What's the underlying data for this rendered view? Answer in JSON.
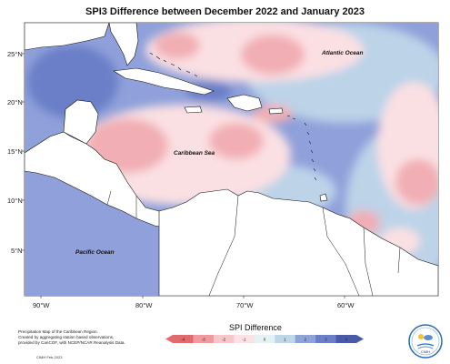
{
  "title": "SPI3 Difference between December 2022 and January 2023",
  "lat_ticks": [
    "25°N",
    "20°N",
    "15°N",
    "10°N",
    "5°N"
  ],
  "lon_ticks": [
    "90°W",
    "80°W",
    "70°W",
    "60°W"
  ],
  "labels": {
    "atlantic": "Atlantic Ocean",
    "caribbean": "Caribbean Sea",
    "pacific": "Pacific Ocean"
  },
  "legend": {
    "title": "SPI Difference",
    "ticks": [
      "-4",
      "-3",
      "-2",
      "-1",
      "0",
      "1",
      "2",
      "3",
      "4"
    ],
    "colors": [
      "#e06a6e",
      "#ee9a9e",
      "#f6c6c9",
      "#fbe2e4",
      "#e6f1f3",
      "#bfd6e9",
      "#8fa3d8",
      "#6a7fc8",
      "#4a5aa6"
    ]
  },
  "credits": {
    "line1": "Precipitation Map of the Caribbean Region.",
    "line2": "Created by aggregating station based observations,",
    "line3": "provided by CariCOF, with NCEP/NCAR Reanalysis Data.",
    "date": "CIMH Feb-2023"
  },
  "logo_text": "CIMH",
  "colors": {
    "land": "#ffffff",
    "wet_light": "#bcd3e8",
    "wet_mid": "#8fa0da",
    "dry_light": "#fbe0e3",
    "dry_mid": "#f1aeb4",
    "neutral": "#e8f1f2"
  }
}
